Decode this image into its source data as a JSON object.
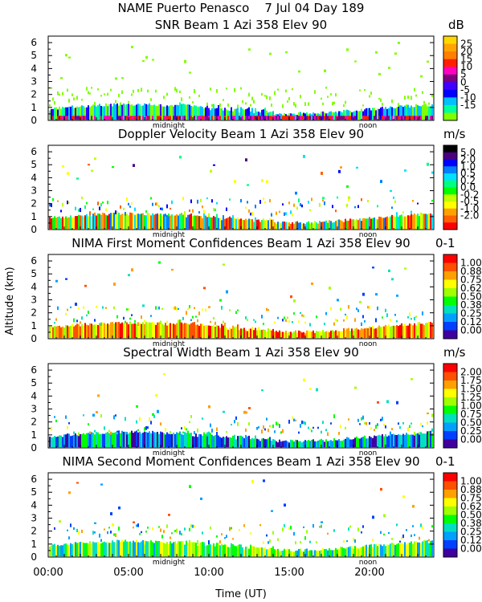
{
  "header": {
    "line1": "NAME Puerto Penasco    7 Jul 04 Day 189"
  },
  "axes": {
    "ylabel": "Altitude (km)",
    "xlabel": "Time (UT)",
    "xticks": [
      "00:00",
      "05:00",
      "10:00",
      "15:00",
      "20:00"
    ],
    "xtick_values": [
      0,
      5,
      10,
      15,
      20
    ],
    "xlim": [
      0,
      24
    ],
    "yticks": [
      "0",
      "1",
      "2",
      "3",
      "4",
      "5",
      "6"
    ],
    "ylim": [
      0,
      6.5
    ],
    "midnight_label": "midnight",
    "noon_label": "noon",
    "midnight_hour": 7.5,
    "noon_hour": 19.9
  },
  "chart_data": [
    {
      "type": "heatmap",
      "title": "SNR Beam 1 Azi 358 Elev 90",
      "unit": "dB",
      "colorbar_labels": [
        "25",
        "20",
        "15",
        "10",
        "5",
        "0",
        "-5",
        "-10",
        "-15"
      ],
      "colorbar_colors": [
        "#ffd700",
        "#ffa500",
        "#ff7f00",
        "#ff2000",
        "#ff00c0",
        "#800080",
        "#4000ff",
        "#0000ff",
        "#00c0ff",
        "#00ffa0",
        "#80ff00"
      ]
    },
    {
      "type": "heatmap",
      "title": "Doppler Velocity Beam 1 Azi 358 Elev 90",
      "unit": "m/s",
      "colorbar_labels": [
        "5.0",
        "2.0",
        "1.0",
        "0.5",
        "0.2",
        "0.0",
        "-0.2",
        "-0.5",
        "-1.0",
        "-2.0"
      ],
      "colorbar_colors": [
        "#000000",
        "#4b0082",
        "#0000ff",
        "#0080ff",
        "#00e0ff",
        "#00ff80",
        "#00ff00",
        "#c0ff00",
        "#ffff00",
        "#ffa000",
        "#ff6000",
        "#ff0000"
      ]
    },
    {
      "type": "heatmap",
      "title": "NIMA First Moment Confidences Beam 1 Azi 358 Elev 90",
      "unit": "0-1",
      "colorbar_labels": [
        "1.00",
        "0.88",
        "0.75",
        "0.62",
        "0.50",
        "0.38",
        "0.25",
        "0.12",
        "0.00"
      ],
      "colorbar_colors": [
        "#ff0000",
        "#ff5000",
        "#ffa000",
        "#ffff00",
        "#a0ff00",
        "#00ff00",
        "#00e0c0",
        "#00a0ff",
        "#0040ff",
        "#4000a0"
      ]
    },
    {
      "type": "heatmap",
      "title": "Spectral Width Beam 1 Azi 358 Elev 90",
      "unit": "m/s",
      "colorbar_labels": [
        "2.00",
        "1.75",
        "1.50",
        "1.25",
        "1.00",
        "0.75",
        "0.50",
        "0.25",
        "0.00"
      ],
      "colorbar_colors": [
        "#ff0000",
        "#ff5000",
        "#ffa000",
        "#ffff00",
        "#a0ff00",
        "#00ff00",
        "#00e0c0",
        "#00a0ff",
        "#0040ff",
        "#4000a0"
      ]
    },
    {
      "type": "heatmap",
      "title": "NIMA Second Moment Confidences Beam 1 Azi 358 Elev 90",
      "unit": "0-1",
      "colorbar_labels": [
        "1.00",
        "0.88",
        "0.75",
        "0.62",
        "0.50",
        "0.38",
        "0.25",
        "0.12",
        "0.00"
      ],
      "colorbar_colors": [
        "#ff0000",
        "#ff5000",
        "#ffa000",
        "#ffff00",
        "#a0ff00",
        "#00ff00",
        "#00e0c0",
        "#00a0ff",
        "#0040ff",
        "#4000a0"
      ]
    }
  ]
}
